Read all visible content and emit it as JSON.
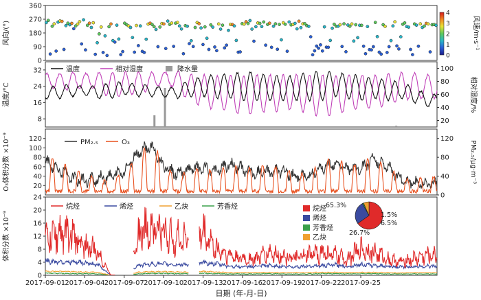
{
  "chart_data": [
    {
      "type": "scatter",
      "ylabel": "风向/(°)",
      "y_ticks": [
        "360",
        "270",
        "180",
        "90",
        "0"
      ],
      "ylim": [
        0,
        360
      ],
      "colorbar": {
        "label": "风速/m·s⁻¹",
        "ticks": [
          "4",
          "3",
          "2",
          "1",
          "0"
        ],
        "range": [
          0,
          4
        ],
        "colors": [
          "#1a1a8c",
          "#2a60d8",
          "#29b6c8",
          "#5cc85c",
          "#e8e236",
          "#f08a24",
          "#d81b1b"
        ]
      },
      "x_range_days": [
        0,
        29.8
      ],
      "wind_direction_deg": [
        248,
        262,
        42,
        224,
        240,
        61,
        251,
        259,
        256,
        72,
        228,
        244,
        234,
        243,
        208,
        226,
        238,
        254,
        108,
        266,
        69,
        230,
        244,
        216,
        247,
        40,
        116,
        174,
        219,
        52,
        161,
        32,
        221,
        239,
        130,
        120,
        231,
        140,
        38,
        58,
        244,
        234,
        226,
        216,
        150,
        54,
        229,
        97,
        226,
        59,
        52,
        139,
        238,
        244,
        236,
        222,
        203,
        90,
        219,
        242,
        239,
        78,
        258,
        236,
        245,
        92,
        244,
        249,
        226,
        206,
        44,
        228,
        224,
        110,
        129,
        91,
        216,
        248,
        241,
        213,
        104,
        220,
        145,
        72,
        233,
        218,
        88,
        64,
        239,
        205,
        231,
        82,
        100,
        197,
        236,
        235,
        226,
        131,
        54,
        56,
        241,
        238,
        254,
        242,
        261,
        205,
        126,
        221,
        246,
        243,
        222,
        252,
        100,
        236,
        244,
        86,
        224,
        240,
        73,
        236,
        135,
        247,
        237,
        60,
        252,
        233,
        236,
        243,
        207,
        257,
        215,
        240,
        241,
        228,
        223,
        155,
        37,
        63,
        94,
        80,
        102,
        62,
        220,
        87,
        86,
        131,
        211,
        237,
        224,
        224,
        234,
        91,
        240,
        57,
        232,
        224,
        239,
        127,
        234,
        149,
        230,
        230,
        93,
        44,
        222,
        71,
        69,
        90,
        249,
        156,
        54,
        41,
        234,
        223,
        52,
        90,
        130,
        226,
        253,
        95,
        75,
        155,
        237,
        246,
        222,
        218,
        72,
        38,
        239,
        231,
        93,
        240,
        216,
        225,
        243,
        239,
        56,
        234,
        235,
        230
      ],
      "wind_speed_ms": [
        1.2,
        2.3,
        0.8,
        1.9,
        2.6,
        0.5,
        1.4,
        2.8,
        3.1,
        0.7,
        1.6,
        2.2,
        1.1,
        3.4,
        0.9,
        1.7,
        2.5,
        2.9,
        0.6,
        1.3,
        0.8,
        2.1,
        3.0,
        1.5,
        2.4,
        0.4,
        1.0,
        1.8,
        2.7,
        0.9,
        1.2,
        0.5,
        2.0,
        3.3,
        1.1,
        0.7,
        1.6,
        1.4,
        0.6,
        0.8,
        2.2,
        1.9,
        2.6,
        1.3,
        1.0,
        0.7,
        2.8,
        0.9,
        1.5,
        0.6,
        0.5,
        1.2,
        2.4,
        3.6,
        2.0,
        1.7,
        1.1,
        0.8,
        1.9,
        2.7,
        3.2,
        0.9,
        1.4,
        2.1,
        2.5,
        0.7,
        1.8,
        2.9,
        1.6,
        1.0,
        0.6,
        2.3,
        1.5,
        0.8,
        1.1,
        0.9,
        1.7,
        2.6,
        3.0,
        1.2,
        0.7,
        1.9,
        1.3,
        0.6,
        2.2,
        1.4,
        0.8,
        0.5,
        2.7,
        1.0,
        1.8,
        0.9,
        0.7,
        1.3,
        2.5,
        3.1,
        1.6,
        1.1,
        0.6,
        0.8,
        2.0,
        2.4,
        3.5,
        1.9,
        1.2,
        1.0,
        0.9,
        1.6,
        2.8,
        2.1,
        1.4,
        1.7,
        0.7,
        2.3,
        3.0,
        0.8,
        1.5,
        2.2,
        0.6,
        1.9,
        1.2,
        2.6,
        1.8,
        0.7,
        1.3,
        2.0,
        2.9,
        1.6,
        1.1,
        3.2,
        1.4,
        2.4,
        1.7,
        2.1,
        1.0,
        0.9,
        0.5,
        0.7,
        0.8,
        0.6,
        0.9,
        0.7,
        1.5,
        0.8,
        0.6,
        1.1,
        1.3,
        2.2,
        1.8,
        1.6,
        2.5,
        0.9,
        1.9,
        0.6,
        1.4,
        2.0,
        2.7,
        1.0,
        1.7,
        1.2,
        1.5,
        2.3,
        0.8,
        0.5,
        1.6,
        0.7,
        0.6,
        0.9,
        2.1,
        1.1,
        0.7,
        0.5,
        1.9,
        2.4,
        0.6,
        0.8,
        1.0,
        1.3,
        2.6,
        0.9,
        0.7,
        1.2,
        1.8,
        2.2,
        1.4,
        1.1,
        0.6,
        0.5,
        2.0,
        1.5,
        0.8,
        2.8,
        1.6,
        1.9,
        3.4,
        2.5,
        0.7,
        1.7,
        2.3,
        1.4
      ]
    },
    {
      "type": "line",
      "legend": [
        "温度",
        "相对湿度",
        "降水量"
      ],
      "ylabel_left": "温度/°C",
      "ylabel_right": "相对湿度/%",
      "y_ticks_left": [
        "32",
        "24",
        "16",
        "8"
      ],
      "ylim_left": [
        4,
        36
      ],
      "y_ticks_right": [
        "100",
        "80",
        "60",
        "40",
        "20"
      ],
      "ylim_right": [
        10,
        110
      ],
      "colors": {
        "temp": "#111111",
        "rh": "#c040b8",
        "rain": "#999999"
      },
      "x_range_days": [
        0,
        29.8
      ],
      "temp_daily_mean_C": [
        21,
        21,
        22,
        22,
        21,
        22,
        23,
        22,
        22,
        21,
        21,
        23,
        24,
        24,
        24,
        24,
        24,
        23,
        23,
        23,
        24,
        24,
        25,
        24,
        23,
        23,
        22,
        22,
        20,
        17
      ],
      "temp_daily_amplitude_C": [
        3,
        3,
        3,
        2,
        3,
        4,
        3,
        3,
        3,
        2,
        3,
        4,
        5,
        6,
        6,
        7,
        7,
        6,
        6,
        6,
        7,
        7,
        6,
        6,
        6,
        5,
        5,
        4,
        4,
        3
      ],
      "rh_daily_mean_pct": [
        82,
        80,
        80,
        82,
        80,
        74,
        76,
        78,
        80,
        86,
        82,
        70,
        66,
        62,
        62,
        58,
        60,
        62,
        62,
        64,
        60,
        58,
        58,
        62,
        64,
        64,
        68,
        72,
        74,
        72
      ],
      "rh_daily_amplitude_pct": [
        10,
        12,
        14,
        10,
        14,
        20,
        18,
        16,
        14,
        8,
        14,
        22,
        24,
        26,
        28,
        30,
        30,
        28,
        28,
        26,
        30,
        32,
        30,
        28,
        26,
        26,
        24,
        22,
        20,
        18
      ],
      "rain_events": [
        {
          "day": 8.3,
          "value": 18
        },
        {
          "day": 9.1,
          "value": 60
        },
        {
          "day": 26.7,
          "value": 2
        }
      ]
    },
    {
      "type": "line",
      "legend": [
        "PM₂.₅",
        "O₃"
      ],
      "ylabel_left": "O₃体积分数 ×10⁻⁹",
      "ylabel_right": "PM₂.₅/μg·m⁻³",
      "y_ticks_left": [
        "120",
        "100",
        "80",
        "60",
        "40",
        "20"
      ],
      "ylim_left": [
        0,
        140
      ],
      "y_ticks_right": [
        "120",
        "80",
        "40",
        "0"
      ],
      "ylim_right": [
        0,
        140
      ],
      "colors": {
        "pm25": "#333333",
        "o3": "#e8501e"
      },
      "x_range_days": [
        0,
        29.8
      ],
      "o3_daily_peak_ppb": [
        85,
        75,
        55,
        45,
        30,
        35,
        50,
        85,
        110,
        75,
        35,
        60,
        55,
        50,
        70,
        55,
        60,
        65,
        55,
        50,
        45,
        70,
        85,
        60,
        70,
        80,
        60,
        40,
        30,
        40
      ],
      "pm25_daily_mean": [
        70,
        55,
        35,
        30,
        35,
        40,
        50,
        90,
        105,
        60,
        45,
        55,
        55,
        50,
        65,
        55,
        45,
        50,
        50,
        40,
        40,
        55,
        70,
        55,
        55,
        75,
        60,
        35,
        25,
        25
      ]
    },
    {
      "type": "line",
      "legend": [
        "烷烃",
        "烯烃",
        "乙炔",
        "芳香烃"
      ],
      "ylabel": "体积分数 ×10⁻⁹",
      "y_ticks": [
        "24",
        "20",
        "16",
        "12",
        "8",
        "4",
        "0"
      ],
      "ylim": [
        0,
        24
      ],
      "colors": {
        "alkane": "#e02a2a",
        "alkene": "#3a4aa0",
        "acetylene": "#f0a030",
        "aromatic": "#3aa04a"
      },
      "x_range_days": [
        0,
        29.8
      ],
      "gaps_days": [
        [
          5.3,
          6.7
        ],
        [
          10.9,
          11.7
        ]
      ],
      "alkane_daily_mean_ppb": [
        11,
        13,
        12,
        9,
        7,
        0,
        0,
        12,
        15,
        13,
        11,
        12,
        13,
        8,
        6,
        5,
        5,
        7,
        6,
        5,
        6,
        7,
        6,
        5,
        8,
        7,
        5,
        4,
        5,
        6
      ],
      "alkene_daily_mean_ppb": [
        4.3,
        4.2,
        4.0,
        3.8,
        3.2,
        0,
        0,
        3.0,
        3.4,
        3.5,
        3.2,
        3.4,
        3.8,
        3.5,
        2.8,
        2.6,
        2.7,
        3.0,
        2.7,
        2.6,
        2.8,
        2.9,
        3.2,
        2.7,
        3.3,
        3.0,
        2.8,
        2.5,
        2.6,
        2.8
      ],
      "acetylene_daily_mean_ppb": [
        1.2,
        1.2,
        1.1,
        1.0,
        0.9,
        0,
        0,
        0.9,
        1.1,
        1.1,
        1.0,
        1.0,
        1.2,
        1.0,
        0.8,
        0.8,
        0.8,
        0.9,
        0.8,
        0.8,
        0.8,
        0.9,
        0.9,
        0.8,
        0.9,
        0.9,
        0.8,
        0.7,
        0.8,
        0.8
      ],
      "aromatic_daily_mean_ppb": [
        0.6,
        0.6,
        0.5,
        0.5,
        0.4,
        0,
        0,
        0.4,
        0.6,
        0.6,
        0.5,
        0.5,
        0.6,
        0.5,
        0.4,
        0.4,
        0.4,
        0.5,
        0.4,
        0.4,
        0.4,
        0.5,
        0.5,
        0.4,
        0.5,
        0.5,
        0.4,
        0.4,
        0.4,
        0.4
      ],
      "inset_pie": {
        "type": "pie",
        "labels": [
          "烷烃",
          "烯烃",
          "芳香烃",
          "乙炔"
        ],
        "percent_labels": [
          "65.3%",
          "26.7%",
          "1.5%",
          "6.5%"
        ],
        "values": [
          65.3,
          26.7,
          1.5,
          6.5
        ],
        "colors": [
          "#e02a2a",
          "#3a4aa0",
          "#3aa04a",
          "#f0a030"
        ]
      }
    }
  ],
  "x_axis": {
    "label": "日期 (年-月-日)",
    "ticks": [
      {
        "label": "2017-09-01",
        "day": 0
      },
      {
        "label": "2017-09-04",
        "day": 3
      },
      {
        "label": "2017-09-07",
        "day": 6
      },
      {
        "label": "2017-09-10",
        "day": 9
      },
      {
        "label": "2017-09-13",
        "day": 12
      },
      {
        "label": "2017-09-16",
        "day": 15
      },
      {
        "label": "2017-09-19",
        "day": 18
      },
      {
        "label": "2017-09-22",
        "day": 21
      },
      {
        "label": "2017-09-25",
        "day": 24
      }
    ]
  }
}
